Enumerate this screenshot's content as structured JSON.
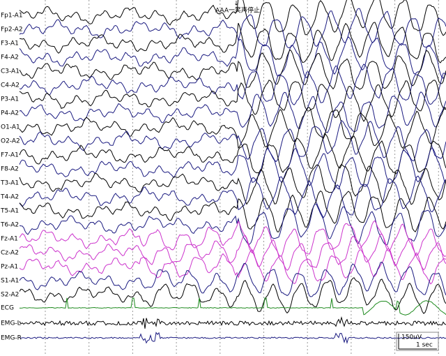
{
  "annotation": {
    "arrow": "↓",
    "text": "AAA一笑声停止"
  },
  "channels": [
    {
      "label": "Fp1-A1",
      "color": "#000000"
    },
    {
      "label": "Fp2-A2",
      "color": "#1a1a80"
    },
    {
      "label": "F3-A1",
      "color": "#000000"
    },
    {
      "label": "F4-A2",
      "color": "#1a1a80"
    },
    {
      "label": "C3-A1",
      "color": "#000000"
    },
    {
      "label": "C4-A2",
      "color": "#1a1a80"
    },
    {
      "label": "P3-A1",
      "color": "#000000"
    },
    {
      "label": "P4-A2",
      "color": "#1a1a80"
    },
    {
      "label": "O1-A1",
      "color": "#000000"
    },
    {
      "label": "O2-A2",
      "color": "#1a1a80"
    },
    {
      "label": "F7-A1",
      "color": "#000000"
    },
    {
      "label": "F8-A2",
      "color": "#1a1a80"
    },
    {
      "label": "T3-A1",
      "color": "#000000"
    },
    {
      "label": "T4-A2",
      "color": "#1a1a80"
    },
    {
      "label": "T5-A1",
      "color": "#000000"
    },
    {
      "label": "T6-A2",
      "color": "#1a1a80"
    },
    {
      "label": "Fz-A1",
      "color": "#cc33cc"
    },
    {
      "label": "Cz-A2",
      "color": "#cc33cc"
    },
    {
      "label": "Pz-A1",
      "color": "#cc33cc"
    },
    {
      "label": "S1-A1",
      "color": "#1a1a80"
    },
    {
      "label": "S2-A2",
      "color": "#000000"
    },
    {
      "label": "ECG",
      "color": "#1e8a1e"
    },
    {
      "label": "EMG-L",
      "color": "#000000"
    },
    {
      "label": "EMG-R",
      "color": "#1a1a80"
    }
  ],
  "scale": {
    "amplitude": "150uV",
    "time": "1 sec"
  }
}
